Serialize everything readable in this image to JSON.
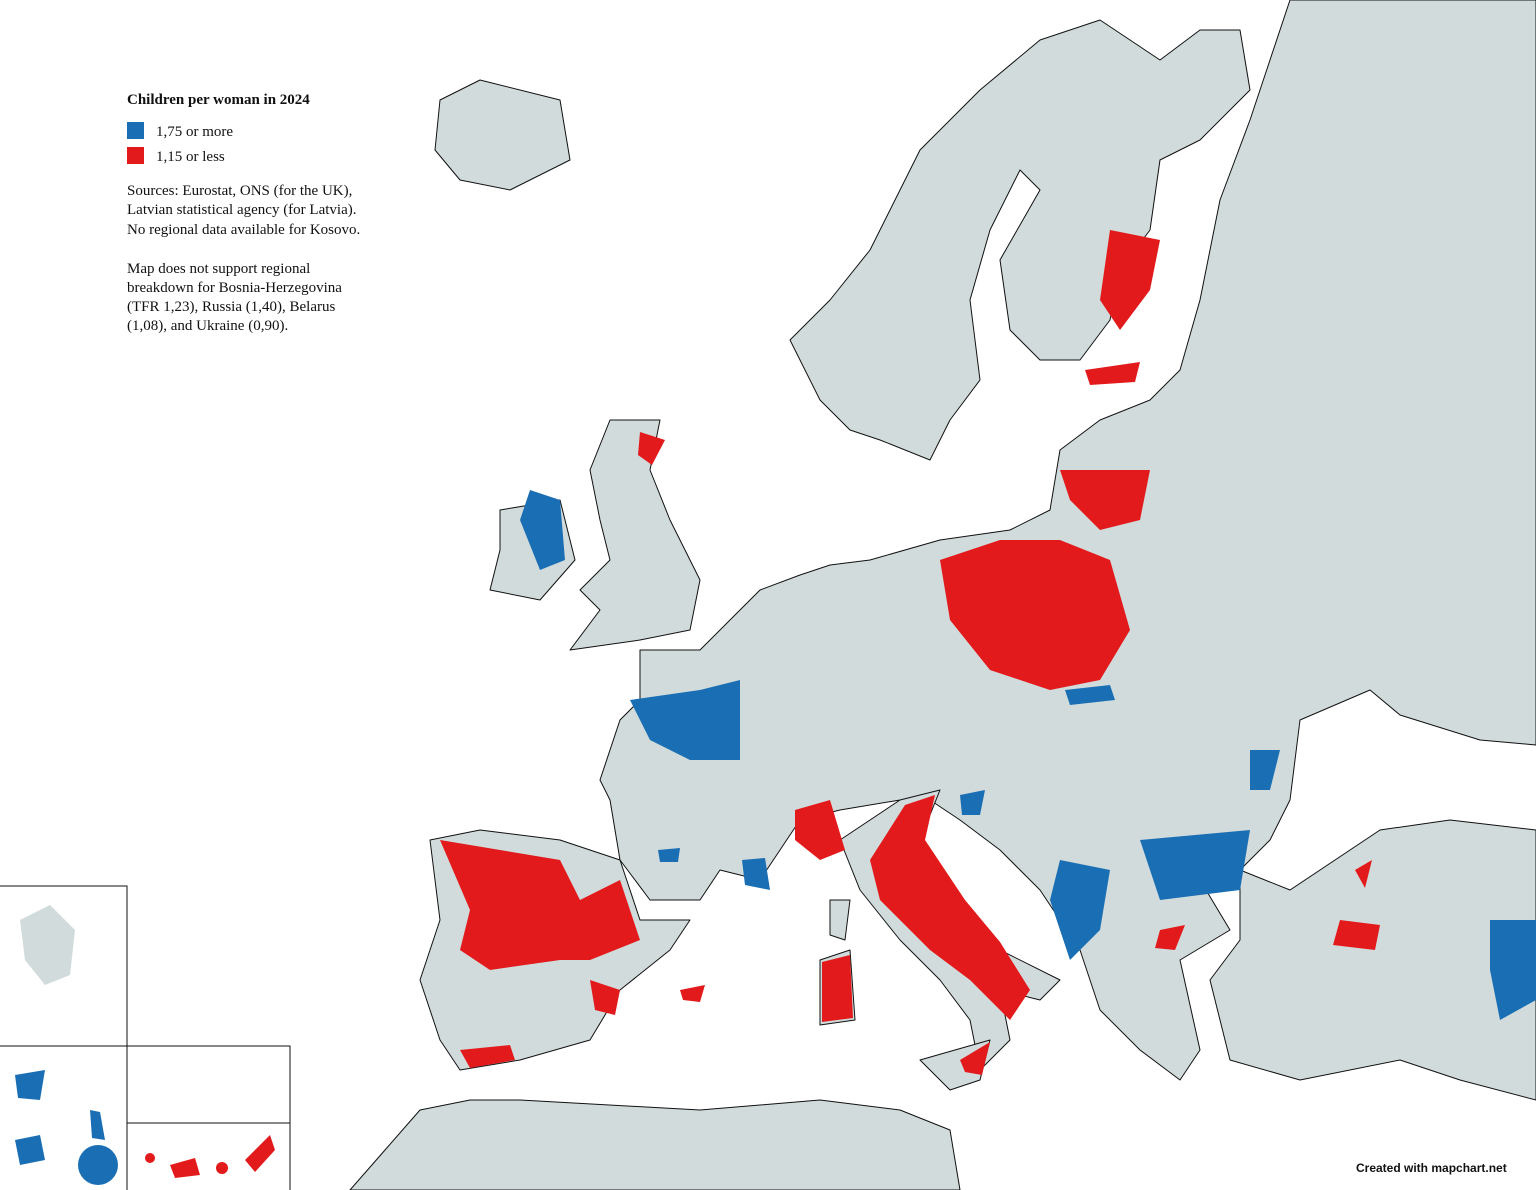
{
  "title": "Children per woman in 2024",
  "legend": [
    {
      "label": "1,75 or more",
      "color": "#1a6eb4"
    },
    {
      "label": "1,15 or less",
      "color": "#e31a1c"
    }
  ],
  "sources": [
    "Sources: Eurostat, ONS (for the UK),",
    "Latvian statistical agency (for Latvia).",
    "No regional data available for Kosovo."
  ],
  "note": [
    "Map does not support regional",
    "breakdown for Bosnia-Herzegovina",
    "(TFR 1,23), Russia (1,40), Belarus",
    "(1,08), and Ukraine (0,90)."
  ],
  "credit": "Created with mapchart.net"
}
